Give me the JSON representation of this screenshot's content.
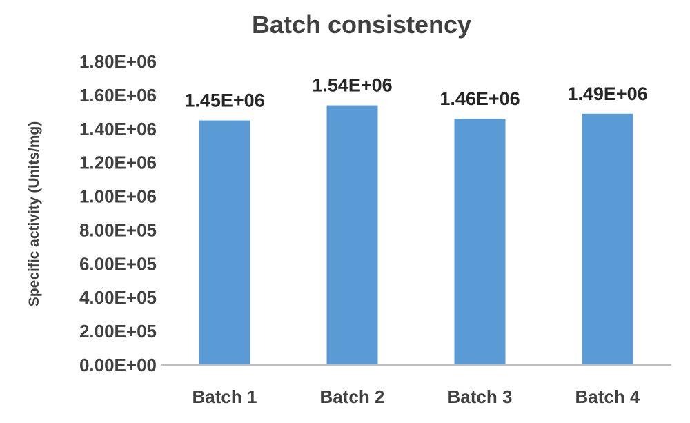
{
  "chart_data": {
    "type": "bar",
    "title": "Batch consistency",
    "xlabel": "",
    "ylabel": "Specific activity (Units/mg)",
    "categories": [
      "Batch 1",
      "Batch 2",
      "Batch 3",
      "Batch 4"
    ],
    "values": [
      1450000,
      1540000,
      1460000,
      1490000
    ],
    "value_labels": [
      "1.45E+06",
      "1.54E+06",
      "1.46E+06",
      "1.49E+06"
    ],
    "ylim": [
      0,
      1800000
    ],
    "y_ticks": [
      0,
      200000,
      400000,
      600000,
      800000,
      1000000,
      1200000,
      1400000,
      1600000,
      1800000
    ],
    "y_tick_labels": [
      "0.00E+00",
      "2.00E+05",
      "4.00E+05",
      "6.00E+05",
      "8.00E+05",
      "1.00E+06",
      "1.20E+06",
      "1.40E+06",
      "1.60E+06",
      "1.80E+06"
    ],
    "grid": false,
    "legend": "none",
    "bar_color": "#5b9bd5",
    "axis_color": "#bfbfbf",
    "text_color": "#404040"
  }
}
